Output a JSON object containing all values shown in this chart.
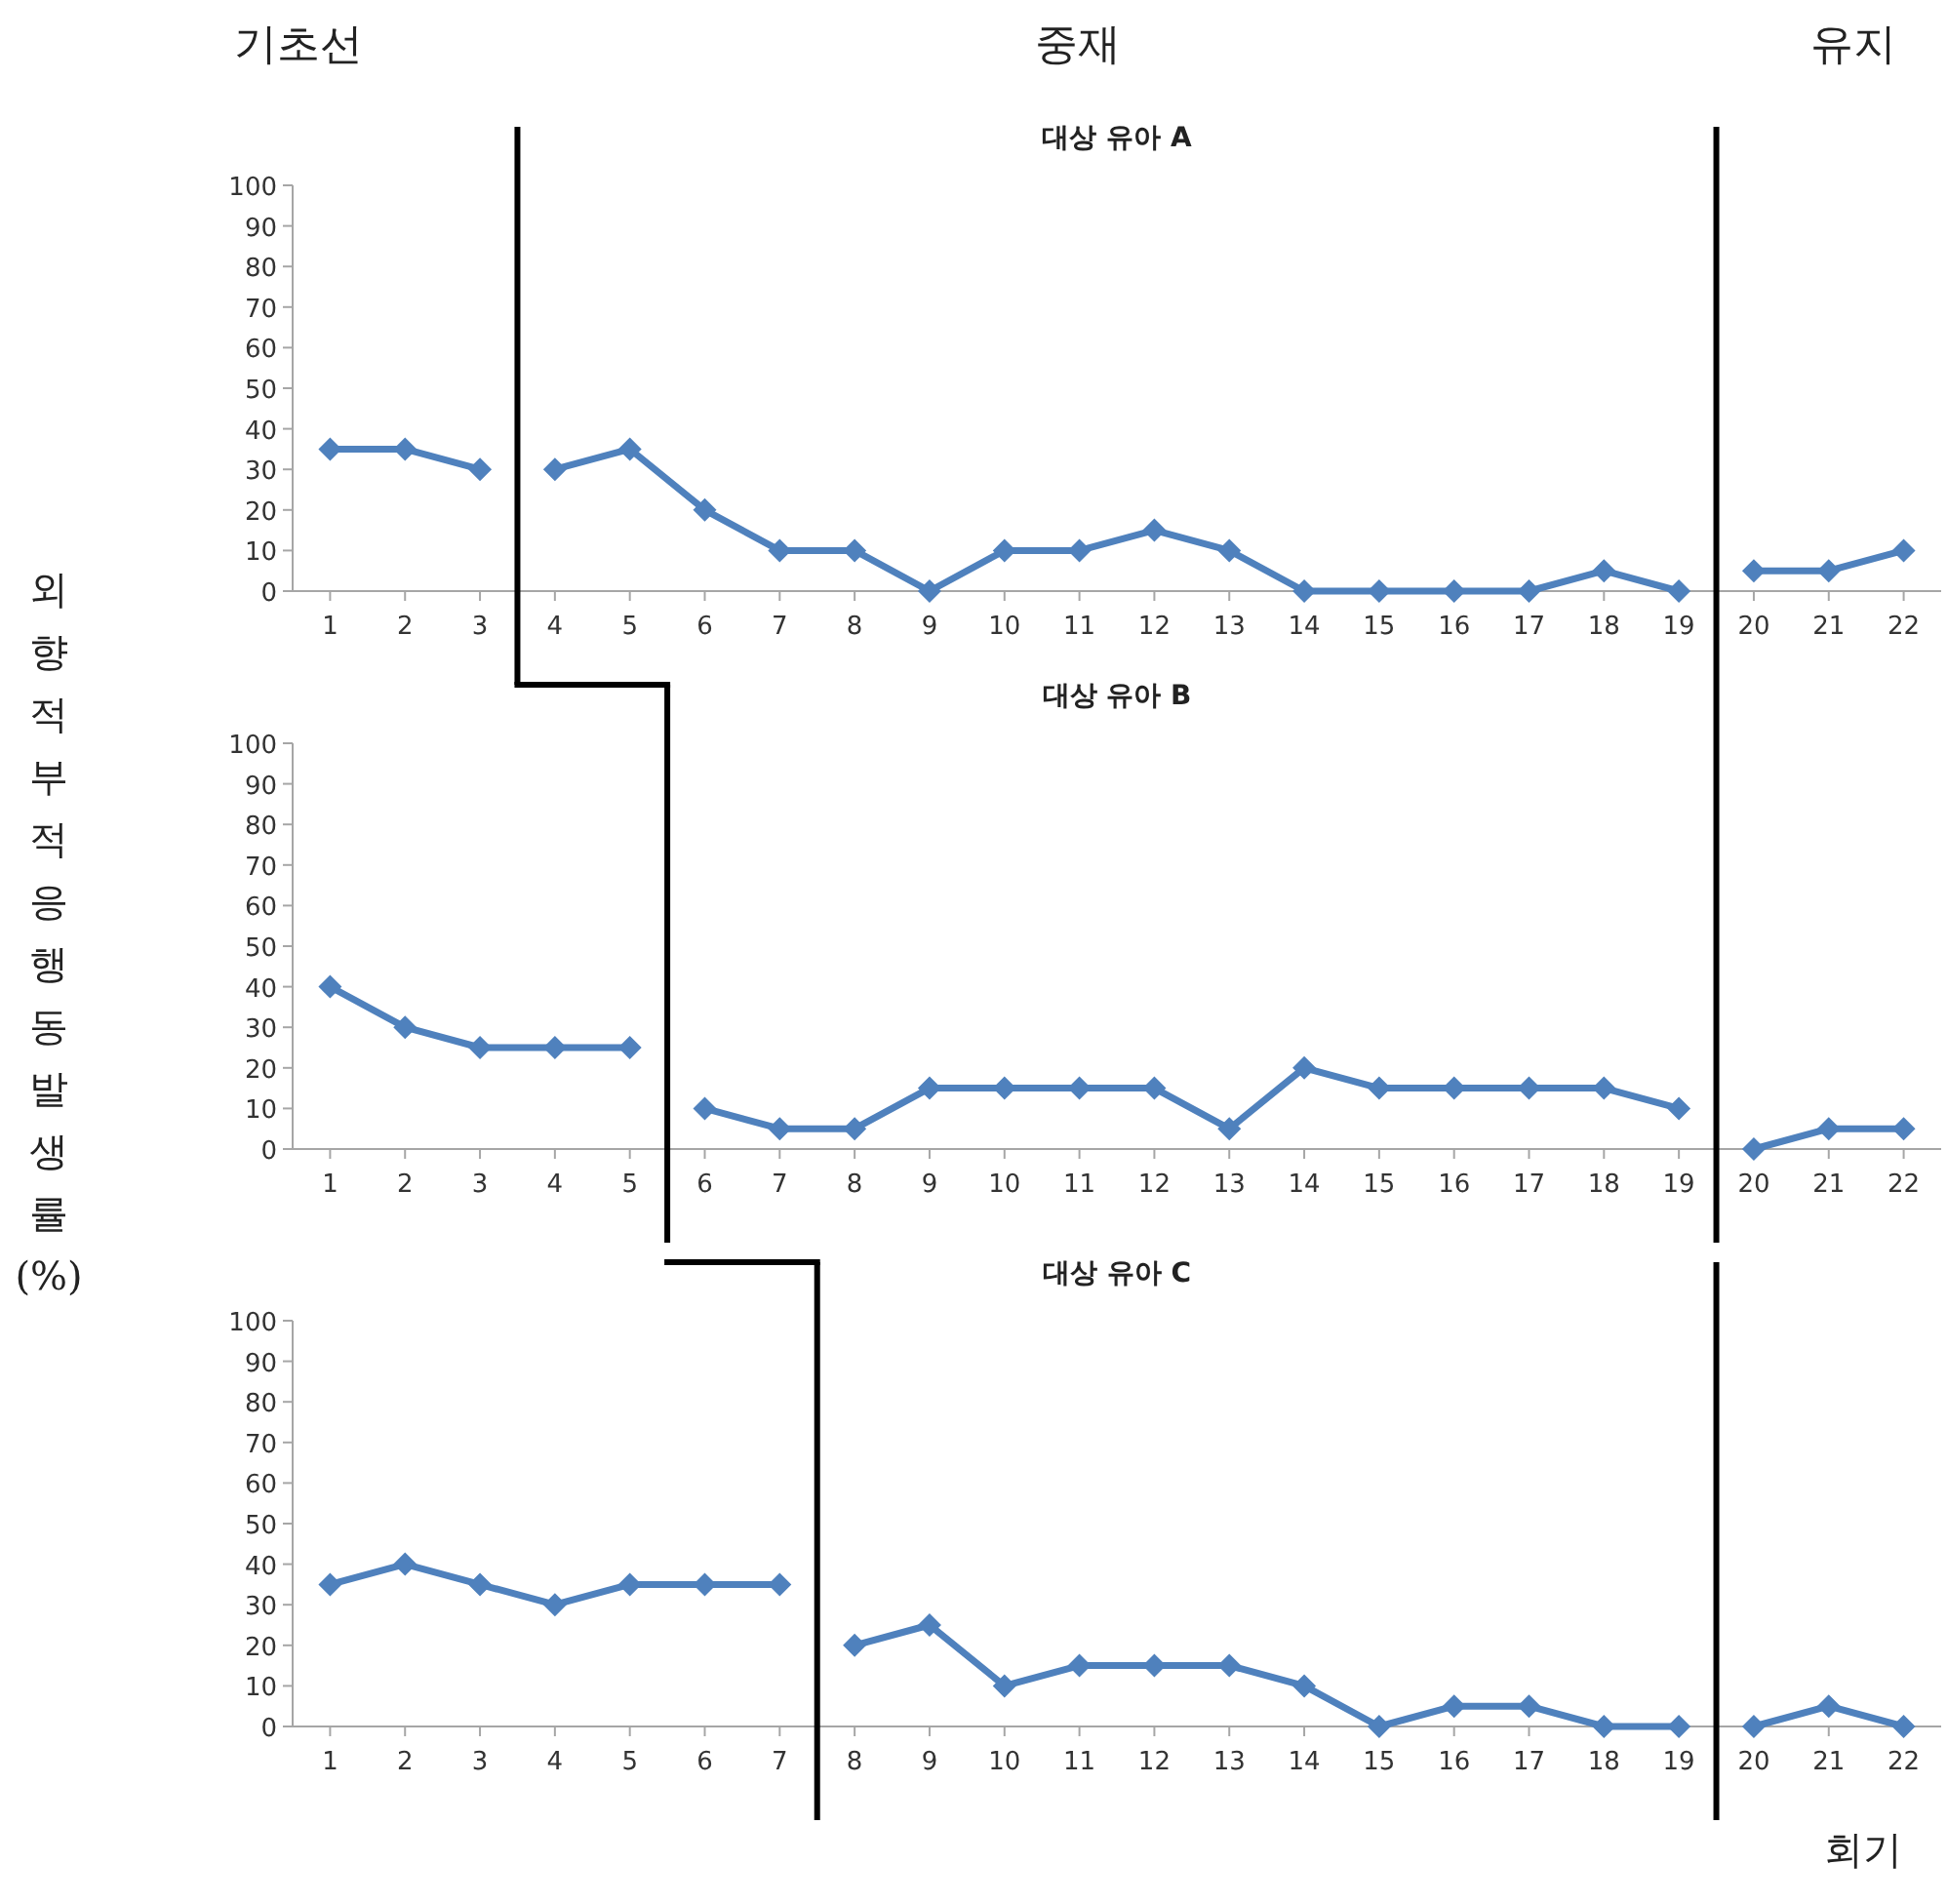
{
  "chart_data": [
    {
      "type": "line",
      "title": "대상 유아 A",
      "annotations": [
        "기초선",
        "중재",
        "유지"
      ],
      "xlim": [
        0.5,
        22.5
      ],
      "xticks": [
        1,
        2,
        3,
        4,
        5,
        6,
        7,
        8,
        9,
        10,
        11,
        12,
        13,
        14,
        15,
        16,
        17,
        18,
        19,
        20,
        21,
        22
      ],
      "ylim": [
        0,
        100
      ],
      "yticks": [
        0,
        10,
        20,
        30,
        40,
        50,
        60,
        70,
        80,
        90,
        100
      ],
      "marker": "diamond",
      "grid": false,
      "ref_lines": [
        {
          "axis": "x",
          "value": 3.5,
          "color": "#000000"
        },
        {
          "axis": "x",
          "value": 19.5,
          "color": "#000000"
        }
      ],
      "series": [
        {
          "color": "#4f81bd",
          "x": [
            1,
            2,
            3
          ],
          "values": [
            35,
            35,
            30
          ]
        },
        {
          "color": "#4f81bd",
          "x": [
            4,
            5,
            6,
            7,
            8,
            9,
            10,
            11,
            12,
            13,
            14,
            15,
            16,
            17,
            18,
            19
          ],
          "values": [
            30,
            35,
            20,
            10,
            10,
            0,
            10,
            10,
            15,
            10,
            0,
            0,
            0,
            0,
            5,
            0
          ]
        },
        {
          "color": "#4f81bd",
          "x": [
            20,
            21,
            22
          ],
          "values": [
            5,
            5,
            10
          ]
        }
      ]
    },
    {
      "type": "line",
      "title": "대상 유아 B",
      "ylabel": "외향적 부적응 행동 발생률 (%)",
      "xlim": [
        0.5,
        22.5
      ],
      "xticks": [
        1,
        2,
        3,
        4,
        5,
        6,
        7,
        8,
        9,
        10,
        11,
        12,
        13,
        14,
        15,
        16,
        17,
        18,
        19,
        20,
        21,
        22
      ],
      "ylim": [
        0,
        100
      ],
      "yticks": [
        0,
        10,
        20,
        30,
        40,
        50,
        60,
        70,
        80,
        90,
        100
      ],
      "marker": "diamond",
      "grid": false,
      "ref_lines": [
        {
          "axis": "x",
          "value": 5.5,
          "color": "#000000"
        },
        {
          "axis": "x",
          "value": 19.5,
          "color": "#000000"
        }
      ],
      "series": [
        {
          "color": "#4f81bd",
          "x": [
            1,
            2,
            3,
            4,
            5
          ],
          "values": [
            40,
            30,
            25,
            25,
            25
          ]
        },
        {
          "color": "#4f81bd",
          "x": [
            6,
            7,
            8,
            9,
            10,
            11,
            12,
            13,
            14,
            15,
            16,
            17,
            18,
            19
          ],
          "values": [
            10,
            5,
            5,
            15,
            15,
            15,
            15,
            5,
            20,
            15,
            15,
            15,
            15,
            10
          ]
        },
        {
          "color": "#4f81bd",
          "x": [
            20,
            21,
            22
          ],
          "values": [
            0,
            5,
            5
          ]
        }
      ]
    },
    {
      "type": "line",
      "title": "대상 유아 C",
      "xlabel": "회기",
      "xlim": [
        0.5,
        22.5
      ],
      "xticks": [
        1,
        2,
        3,
        4,
        5,
        6,
        7,
        8,
        9,
        10,
        11,
        12,
        13,
        14,
        15,
        16,
        17,
        18,
        19,
        20,
        21,
        22
      ],
      "ylim": [
        0,
        100
      ],
      "yticks": [
        0,
        10,
        20,
        30,
        40,
        50,
        60,
        70,
        80,
        90,
        100
      ],
      "marker": "diamond",
      "grid": false,
      "ref_lines": [
        {
          "axis": "x",
          "value": 7.5,
          "color": "#000000"
        },
        {
          "axis": "x",
          "value": 19.5,
          "color": "#000000"
        }
      ],
      "series": [
        {
          "color": "#4f81bd",
          "x": [
            1,
            2,
            3,
            4,
            5,
            6,
            7
          ],
          "values": [
            35,
            40,
            35,
            30,
            35,
            35,
            35
          ]
        },
        {
          "color": "#4f81bd",
          "x": [
            8,
            9,
            10,
            11,
            12,
            13,
            14,
            15,
            16,
            17,
            18,
            19
          ],
          "values": [
            20,
            25,
            10,
            15,
            15,
            15,
            10,
            0,
            5,
            5,
            0,
            0
          ]
        },
        {
          "color": "#4f81bd",
          "x": [
            20,
            21,
            22
          ],
          "values": [
            0,
            5,
            0
          ]
        }
      ]
    }
  ]
}
